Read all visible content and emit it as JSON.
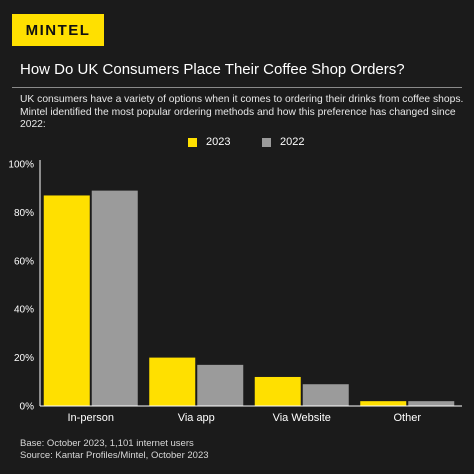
{
  "brand": {
    "logo_text": "MINTEL"
  },
  "header": {
    "title": "How Do UK Consumers Place Their Coffee Shop Orders?",
    "subtitle": "UK consumers have a variety of options when it comes to ordering their drinks from coffee shops. Mintel identified the most popular ordering methods and how this preference has changed since 2022:"
  },
  "colors": {
    "series_2023": "#ffe000",
    "series_2022": "#9b9b9b",
    "background": "#1b1b1b"
  },
  "chart_data": {
    "type": "bar",
    "categories": [
      "In-person",
      "Via app",
      "Via Website",
      "Other"
    ],
    "series": [
      {
        "name": "2023",
        "values": [
          87,
          20,
          12,
          2
        ]
      },
      {
        "name": "2022",
        "values": [
          89,
          17,
          9,
          2
        ]
      }
    ],
    "ylim": [
      0,
      100
    ],
    "yticks": [
      "0%",
      "20%",
      "40%",
      "60%",
      "80%",
      "100%"
    ],
    "legend_position": "top-center",
    "grid": false
  },
  "footer": {
    "base": "Base: October 2023, 1,101 internet users",
    "source": "Source: Kantar Profiles/Mintel, October 2023"
  }
}
